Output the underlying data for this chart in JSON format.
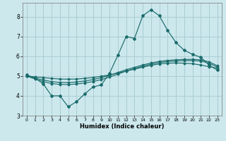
{
  "xlabel": "Humidex (Indice chaleur)",
  "background_color": "#cce8ed",
  "grid_color": "#aacdd4",
  "line_color": "#1a6b6b",
  "xlim": [
    -0.5,
    23.5
  ],
  "ylim": [
    3,
    8.7
  ],
  "yticks": [
    3,
    4,
    5,
    6,
    7,
    8
  ],
  "xticks": [
    0,
    1,
    2,
    3,
    4,
    5,
    6,
    7,
    8,
    9,
    10,
    11,
    12,
    13,
    14,
    15,
    16,
    17,
    18,
    19,
    20,
    21,
    22,
    23
  ],
  "line1_x": [
    0,
    1,
    2,
    3,
    4,
    5,
    6,
    7,
    8,
    9,
    10,
    11,
    12,
    13,
    14,
    15,
    16,
    17,
    18,
    19,
    20,
    21,
    22,
    23
  ],
  "line1_y": [
    5.05,
    4.9,
    4.6,
    4.0,
    4.0,
    3.45,
    3.7,
    4.1,
    4.45,
    4.55,
    5.15,
    6.05,
    7.0,
    6.9,
    8.05,
    8.35,
    8.05,
    7.3,
    6.7,
    6.3,
    6.1,
    5.95,
    5.55,
    5.3
  ],
  "line2_x": [
    0,
    1,
    2,
    3,
    4,
    5,
    6,
    7,
    8,
    9,
    10,
    11,
    12,
    13,
    14,
    15,
    16,
    17,
    18,
    19,
    20,
    21,
    22,
    23
  ],
  "line2_y": [
    5.0,
    4.85,
    4.72,
    4.62,
    4.58,
    4.57,
    4.6,
    4.65,
    4.72,
    4.82,
    4.95,
    5.1,
    5.25,
    5.38,
    5.5,
    5.6,
    5.68,
    5.73,
    5.76,
    5.78,
    5.78,
    5.76,
    5.65,
    5.45
  ],
  "line3_x": [
    0,
    1,
    2,
    3,
    4,
    5,
    6,
    7,
    8,
    9,
    10,
    11,
    12,
    13,
    14,
    15,
    16,
    17,
    18,
    19,
    20,
    21,
    22,
    23
  ],
  "line3_y": [
    5.0,
    4.9,
    4.8,
    4.72,
    4.68,
    4.67,
    4.7,
    4.75,
    4.82,
    4.92,
    5.04,
    5.18,
    5.32,
    5.44,
    5.56,
    5.66,
    5.74,
    5.79,
    5.82,
    5.84,
    5.84,
    5.82,
    5.72,
    5.52
  ],
  "line4_x": [
    0,
    1,
    2,
    3,
    4,
    5,
    6,
    7,
    8,
    9,
    10,
    11,
    12,
    13,
    14,
    15,
    16,
    17,
    18,
    19,
    20,
    21,
    22,
    23
  ],
  "line4_y": [
    5.0,
    4.96,
    4.92,
    4.88,
    4.85,
    4.84,
    4.85,
    4.88,
    4.93,
    4.99,
    5.06,
    5.15,
    5.25,
    5.35,
    5.45,
    5.54,
    5.61,
    5.65,
    5.66,
    5.65,
    5.62,
    5.56,
    5.47,
    5.4
  ]
}
